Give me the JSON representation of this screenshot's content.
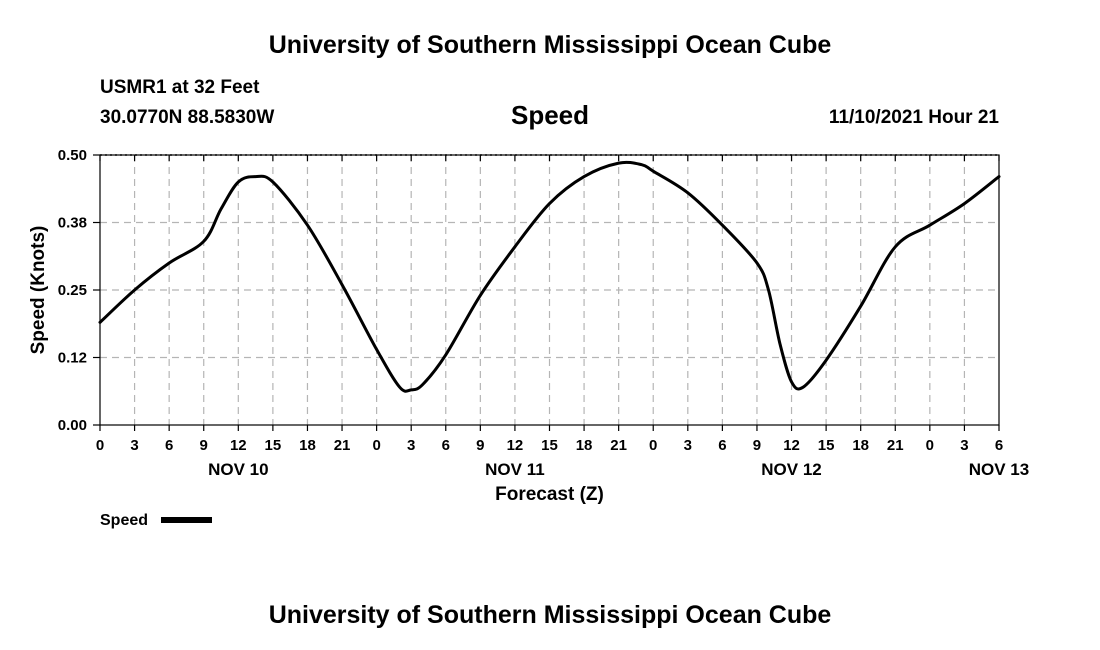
{
  "header": {
    "title": "University of Southern Mississippi Ocean Cube",
    "station": "USMR1 at 32 Feet",
    "coordinates": "30.0770N  88.5830W",
    "variable": "Speed",
    "datetime": "11/10/2021 Hour 21"
  },
  "footer": {
    "title": "University of Southern Mississippi Ocean Cube"
  },
  "chart_data": {
    "type": "line",
    "title": "Speed",
    "xlabel": "Forecast (Z)",
    "ylabel": "Speed (Knots)",
    "ylim": [
      0,
      0.5
    ],
    "yticks": [
      "0.00",
      "0.12",
      "0.25",
      "0.38",
      "0.50"
    ],
    "xlim_hours": [
      0,
      78
    ],
    "xtick_labels": [
      "0",
      "3",
      "6",
      "9",
      "12",
      "15",
      "18",
      "21",
      "0",
      "3",
      "6",
      "9",
      "12",
      "15",
      "18",
      "21",
      "0",
      "3",
      "6",
      "9",
      "12",
      "15",
      "18",
      "21",
      "0",
      "3",
      "6"
    ],
    "day_labels": [
      {
        "label": "NOV 10",
        "hour": 12
      },
      {
        "label": "NOV 11",
        "hour": 36
      },
      {
        "label": "NOV 12",
        "hour": 60
      },
      {
        "label": "NOV 13",
        "hour": 78
      }
    ],
    "grid": true,
    "legend": {
      "position": "bottom-left",
      "label": "Speed"
    },
    "series": [
      {
        "name": "Speed",
        "color": "#000000",
        "x": [
          0,
          3,
          6,
          9,
          10.5,
          12,
          13.5,
          15,
          18,
          21,
          24,
          26,
          27,
          28,
          30,
          33,
          36,
          39,
          42,
          45,
          47,
          48,
          51,
          54,
          57,
          58,
          59,
          60,
          61,
          63,
          66,
          69,
          72,
          75,
          78
        ],
        "y": [
          0.19,
          0.25,
          0.3,
          0.34,
          0.4,
          0.45,
          0.46,
          0.45,
          0.37,
          0.26,
          0.14,
          0.07,
          0.065,
          0.075,
          0.13,
          0.24,
          0.33,
          0.41,
          0.46,
          0.485,
          0.482,
          0.47,
          0.43,
          0.37,
          0.3,
          0.25,
          0.15,
          0.08,
          0.07,
          0.12,
          0.22,
          0.33,
          0.37,
          0.41,
          0.46
        ]
      }
    ]
  }
}
